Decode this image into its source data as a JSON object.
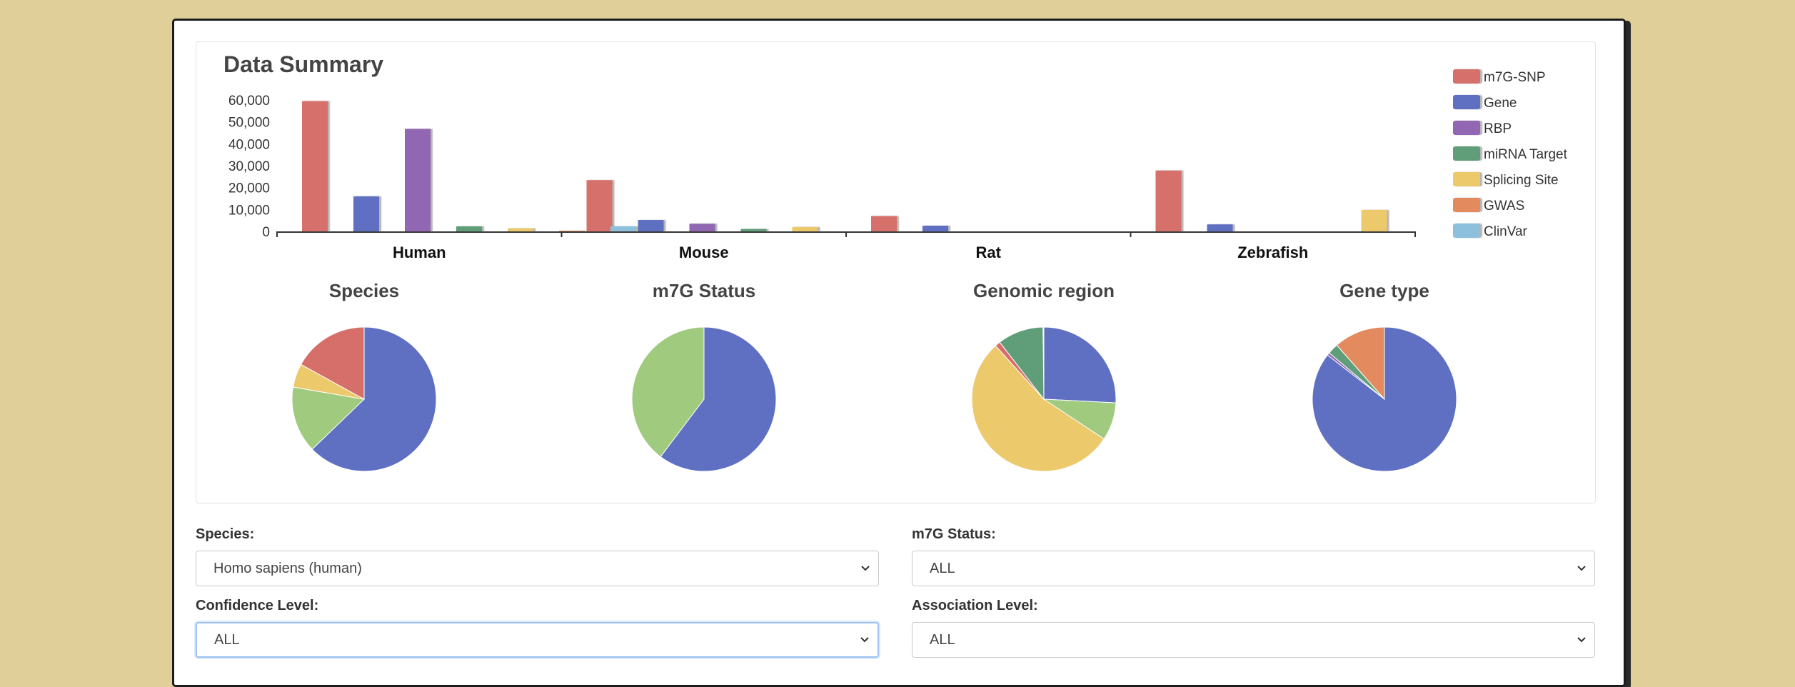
{
  "panel": {
    "title": "Data Summary"
  },
  "chart_data": [
    {
      "type": "bar",
      "title": "",
      "categories": [
        "Human",
        "Mouse",
        "Rat",
        "Zebrafish"
      ],
      "series": [
        {
          "name": "m7G-SNP",
          "color": "#d66f6a",
          "values": [
            59500,
            23400,
            7000,
            27800
          ]
        },
        {
          "name": "Gene",
          "color": "#5f70c3",
          "values": [
            16000,
            5200,
            2600,
            3200
          ]
        },
        {
          "name": "RBP",
          "color": "#9166b2",
          "values": [
            46800,
            3500,
            0,
            0
          ]
        },
        {
          "name": "miRNA Target",
          "color": "#5f9e78",
          "values": [
            2300,
            1100,
            0,
            0
          ]
        },
        {
          "name": "Splicing Site",
          "color": "#ecc96b",
          "values": [
            1400,
            2000,
            0,
            9800
          ]
        },
        {
          "name": "GWAS",
          "color": "#e48a5f",
          "values": [
            300,
            0,
            0,
            0
          ]
        },
        {
          "name": "ClinVar",
          "color": "#8cc0dc",
          "values": [
            2300,
            0,
            0,
            0
          ]
        }
      ],
      "yticks": [
        "60,000",
        "50,000",
        "40,000",
        "30,000",
        "20,000",
        "10,000",
        "0"
      ],
      "ylim": [
        0,
        60000
      ],
      "legend_position": "right"
    },
    {
      "type": "pie",
      "title": "Species",
      "slices": [
        {
          "value": 0.628,
          "color": "#5f70c3"
        },
        {
          "value": 0.149,
          "color": "#a0ca7e"
        },
        {
          "value": 0.053,
          "color": "#ecc96b"
        },
        {
          "value": 0.17,
          "color": "#d66f6a"
        }
      ]
    },
    {
      "type": "pie",
      "title": "m7G Status",
      "slices": [
        {
          "value": 0.603,
          "color": "#5f70c3"
        },
        {
          "value": 0.397,
          "color": "#a0ca7e"
        }
      ]
    },
    {
      "type": "pie",
      "title": "Genomic region",
      "slices": [
        {
          "value": 0.258,
          "color": "#5f70c3"
        },
        {
          "value": 0.085,
          "color": "#a0ca7e"
        },
        {
          "value": 0.54,
          "color": "#ecc96b"
        },
        {
          "value": 0.012,
          "color": "#d66f6a"
        },
        {
          "value": 0.103,
          "color": "#5f9e78"
        }
      ]
    },
    {
      "type": "pie",
      "title": "Gene type",
      "slices": [
        {
          "value": 0.855,
          "color": "#5f70c3"
        },
        {
          "value": 0.006,
          "color": "#9166b2"
        },
        {
          "value": 0.024,
          "color": "#5f9e78"
        },
        {
          "value": 0.115,
          "color": "#e48a5f"
        }
      ]
    }
  ],
  "filters": {
    "species": {
      "label": "Species:",
      "value": "Homo sapiens (human)"
    },
    "status": {
      "label": "m7G Status:",
      "value": "ALL"
    },
    "confidence": {
      "label": "Confidence Level:",
      "value": "ALL"
    },
    "association": {
      "label": "Association Level:",
      "value": "ALL"
    }
  }
}
